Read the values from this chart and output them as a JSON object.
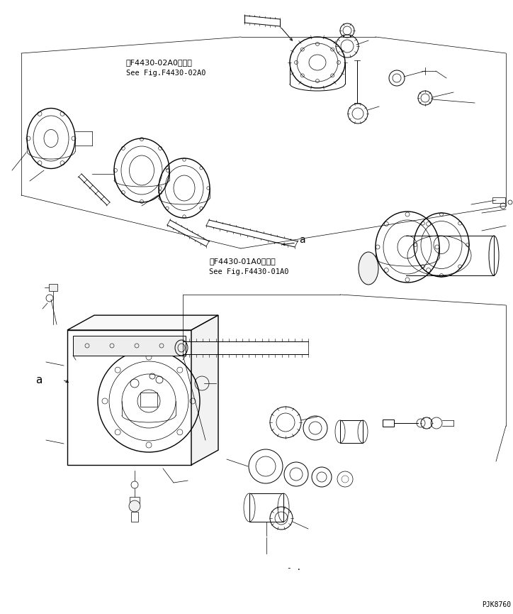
{
  "bg_color": "#ffffff",
  "line_color": "#000000",
  "fig_width": 7.24,
  "fig_height": 8.65,
  "dpi": 100,
  "label1_jp": "第F4430-02A0図参照",
  "label1_en": "See Fig.F4430-02A0",
  "label2_jp": "第F4430-01A0図参照",
  "label2_en": "See Fig.F4430-01A0",
  "part_number": "PJK8760",
  "label_a": "a",
  "dash_label": "- ."
}
